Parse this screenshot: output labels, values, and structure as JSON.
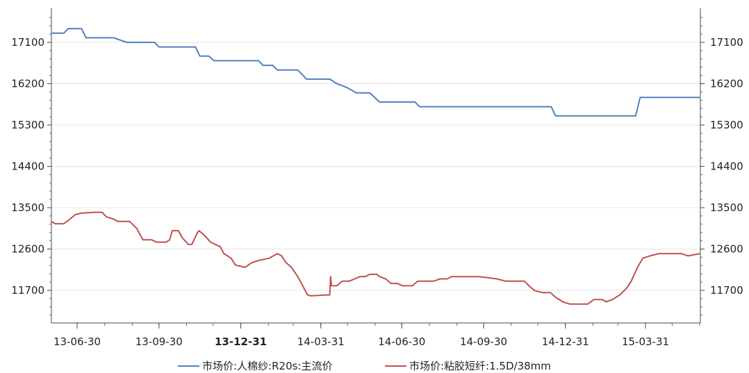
{
  "chart_data": {
    "type": "line",
    "title": "",
    "xlabel": "",
    "ylabel": "",
    "x_ticks": [
      "13-06-30",
      "13-09-30",
      "13-12-31",
      "14-03-31",
      "14-06-30",
      "14-09-30",
      "14-12-31",
      "15-03-31"
    ],
    "x_ticks_bold": [
      "13-12-31"
    ],
    "x_range": [
      "2013-06-01",
      "2015-05-31"
    ],
    "ylim": [
      11000,
      17700
    ],
    "y_ticks": [
      11700,
      12600,
      13500,
      14400,
      15300,
      16200,
      17100
    ],
    "grid": "horizontal",
    "legend_position": "bottom",
    "series": [
      {
        "name": "市场价:人棉纱:R20s:主流价",
        "color": "#4f81bd",
        "points": [
          [
            "2013-06-01",
            17300
          ],
          [
            "2013-06-15",
            17300
          ],
          [
            "2013-06-20",
            17400
          ],
          [
            "2013-07-05",
            17400
          ],
          [
            "2013-07-10",
            17200
          ],
          [
            "2013-08-10",
            17200
          ],
          [
            "2013-08-25",
            17100
          ],
          [
            "2013-09-25",
            17100
          ],
          [
            "2013-09-30",
            17000
          ],
          [
            "2013-11-10",
            17000
          ],
          [
            "2013-11-15",
            16800
          ],
          [
            "2013-11-25",
            16800
          ],
          [
            "2013-12-01",
            16700
          ],
          [
            "2014-01-20",
            16700
          ],
          [
            "2014-01-25",
            16600
          ],
          [
            "2014-02-05",
            16600
          ],
          [
            "2014-02-10",
            16500
          ],
          [
            "2014-03-05",
            16500
          ],
          [
            "2014-03-15",
            16300
          ],
          [
            "2014-04-10",
            16300
          ],
          [
            "2014-04-18",
            16200
          ],
          [
            "2014-04-25",
            16150
          ],
          [
            "2014-05-01",
            16100
          ],
          [
            "2014-05-10",
            16000
          ],
          [
            "2014-05-25",
            16000
          ],
          [
            "2014-06-05",
            15800
          ],
          [
            "2014-07-15",
            15800
          ],
          [
            "2014-07-20",
            15700
          ],
          [
            "2014-12-15",
            15700
          ],
          [
            "2014-12-20",
            15500
          ],
          [
            "2015-03-20",
            15500
          ],
          [
            "2015-03-25",
            15900
          ],
          [
            "2015-05-31",
            15900
          ]
        ]
      },
      {
        "name": "市场价:粘胶短纤:1.5D/38mm",
        "color": "#c0504d",
        "points": [
          [
            "2013-06-01",
            13200
          ],
          [
            "2013-06-05",
            13150
          ],
          [
            "2013-06-15",
            13150
          ],
          [
            "2013-06-22",
            13250
          ],
          [
            "2013-06-28",
            13350
          ],
          [
            "2013-07-05",
            13380
          ],
          [
            "2013-07-20",
            13400
          ],
          [
            "2013-07-28",
            13400
          ],
          [
            "2013-08-02",
            13300
          ],
          [
            "2013-08-10",
            13250
          ],
          [
            "2013-08-15",
            13200
          ],
          [
            "2013-08-28",
            13200
          ],
          [
            "2013-09-05",
            13050
          ],
          [
            "2013-09-12",
            12800
          ],
          [
            "2013-09-22",
            12800
          ],
          [
            "2013-09-27",
            12750
          ],
          [
            "2013-10-08",
            12750
          ],
          [
            "2013-10-12",
            12800
          ],
          [
            "2013-10-15",
            13000
          ],
          [
            "2013-10-22",
            13000
          ],
          [
            "2013-10-26",
            12850
          ],
          [
            "2013-11-02",
            12700
          ],
          [
            "2013-11-06",
            12700
          ],
          [
            "2013-11-12",
            12950
          ],
          [
            "2013-11-14",
            13000
          ],
          [
            "2013-11-20",
            12900
          ],
          [
            "2013-11-27",
            12750
          ],
          [
            "2013-12-08",
            12650
          ],
          [
            "2013-12-12",
            12500
          ],
          [
            "2013-12-20",
            12400
          ],
          [
            "2013-12-25",
            12250
          ],
          [
            "2014-01-05",
            12200
          ],
          [
            "2014-01-12",
            12300
          ],
          [
            "2014-01-20",
            12350
          ],
          [
            "2014-02-01",
            12400
          ],
          [
            "2014-02-10",
            12500
          ],
          [
            "2014-02-15",
            12450
          ],
          [
            "2014-02-20",
            12300
          ],
          [
            "2014-02-26",
            12200
          ],
          [
            "2014-03-05",
            12000
          ],
          [
            "2014-03-12",
            11750
          ],
          [
            "2014-03-16",
            11600
          ],
          [
            "2014-03-20",
            11580
          ],
          [
            "2014-04-07",
            11600
          ],
          [
            "2014-04-10",
            11600
          ],
          [
            "2014-04-11",
            12000
          ],
          [
            "2014-04-12",
            11800
          ],
          [
            "2014-04-18",
            11800
          ],
          [
            "2014-04-24",
            11900
          ],
          [
            "2014-05-02",
            11900
          ],
          [
            "2014-05-08",
            11950
          ],
          [
            "2014-05-14",
            12000
          ],
          [
            "2014-05-20",
            12000
          ],
          [
            "2014-05-25",
            12050
          ],
          [
            "2014-06-02",
            12050
          ],
          [
            "2014-06-05",
            12000
          ],
          [
            "2014-06-12",
            11950
          ],
          [
            "2014-06-18",
            11850
          ],
          [
            "2014-06-25",
            11850
          ],
          [
            "2014-07-01",
            11800
          ],
          [
            "2014-07-12",
            11800
          ],
          [
            "2014-07-18",
            11900
          ],
          [
            "2014-08-05",
            11900
          ],
          [
            "2014-08-12",
            11950
          ],
          [
            "2014-08-20",
            11950
          ],
          [
            "2014-08-25",
            12000
          ],
          [
            "2014-09-05",
            12000
          ],
          [
            "2014-09-25",
            12000
          ],
          [
            "2014-10-15",
            11950
          ],
          [
            "2014-10-25",
            11900
          ],
          [
            "2014-11-15",
            11900
          ],
          [
            "2014-11-20",
            11800
          ],
          [
            "2014-11-26",
            11700
          ],
          [
            "2014-12-05",
            11650
          ],
          [
            "2014-12-14",
            11650
          ],
          [
            "2014-12-20",
            11550
          ],
          [
            "2014-12-28",
            11450
          ],
          [
            "2015-01-05",
            11400
          ],
          [
            "2015-01-25",
            11400
          ],
          [
            "2015-02-01",
            11500
          ],
          [
            "2015-02-10",
            11500
          ],
          [
            "2015-02-15",
            11450
          ],
          [
            "2015-02-22",
            11500
          ],
          [
            "2015-03-02",
            11600
          ],
          [
            "2015-03-10",
            11750
          ],
          [
            "2015-03-15",
            11900
          ],
          [
            "2015-03-22",
            12200
          ],
          [
            "2015-03-28",
            12400
          ],
          [
            "2015-04-05",
            12450
          ],
          [
            "2015-04-15",
            12500
          ],
          [
            "2015-05-10",
            12500
          ],
          [
            "2015-05-18",
            12450
          ],
          [
            "2015-05-31",
            12500
          ]
        ]
      }
    ]
  }
}
